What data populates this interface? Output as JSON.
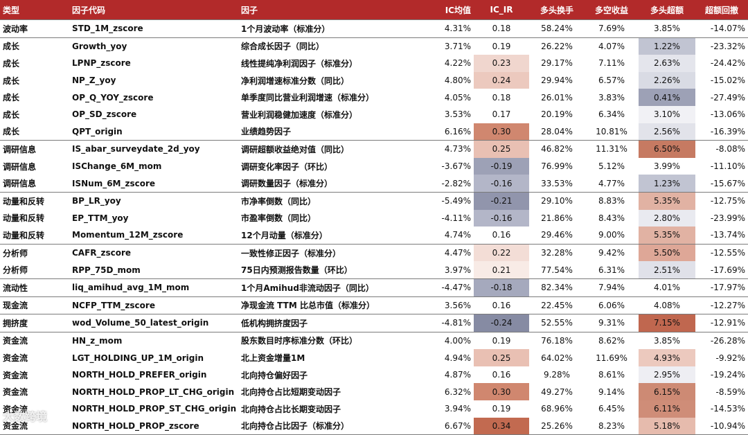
{
  "headers": [
    "类型",
    "因子代码",
    "因子",
    "IC均值",
    "IC_IR",
    "多头换手",
    "多空收益",
    "多头超额",
    "超额回撤"
  ],
  "colors": {
    "header_bg": "#b22a2a",
    "positive_dark": "#c0674f",
    "negative_dark": "#8a8fa8"
  },
  "rows": [
    {
      "type": "波动率",
      "code": "STD_1M_zscore",
      "factor": "1个月波动率（标准分）",
      "ic": "4.31%",
      "icir": "0.18",
      "turnover": "58.24%",
      "ls_ret": "7.69%",
      "excess": "3.85%",
      "dd": "-14.07%",
      "icir_bg": "#ffffff",
      "excess_bg": "#ffffff",
      "sep": true
    },
    {
      "type": "成长",
      "code": "Growth_yoy",
      "factor": "综合成长因子（同比）",
      "ic": "3.71%",
      "icir": "0.19",
      "turnover": "26.22%",
      "ls_ret": "4.07%",
      "excess": "1.22%",
      "dd": "-23.32%",
      "icir_bg": "#ffffff",
      "excess_bg": "#c1c4d2",
      "sep": true
    },
    {
      "type": "成长",
      "code": "LPNP_zscore",
      "factor": "线性提纯净利润因子（标准分）",
      "ic": "4.22%",
      "icir": "0.23",
      "turnover": "29.17%",
      "ls_ret": "7.11%",
      "excess": "2.63%",
      "dd": "-24.42%",
      "icir_bg": "#f0d6ce",
      "excess_bg": "#e4e5ec",
      "sep": false
    },
    {
      "type": "成长",
      "code": "NP_Z_yoy",
      "factor": "净利润增速标准分数（同比）",
      "ic": "4.80%",
      "icir": "0.24",
      "turnover": "29.94%",
      "ls_ret": "6.57%",
      "excess": "2.26%",
      "dd": "-15.02%",
      "icir_bg": "#ecc9be",
      "excess_bg": "#d9dbe4",
      "sep": false
    },
    {
      "type": "成长",
      "code": "OP_Q_YOY_zscore",
      "factor": "单季度同比营业利润增速（标准分）",
      "ic": "4.05%",
      "icir": "0.18",
      "turnover": "26.01%",
      "ls_ret": "3.83%",
      "excess": "0.41%",
      "dd": "-27.49%",
      "icir_bg": "#ffffff",
      "excess_bg": "#9da1b6",
      "sep": false
    },
    {
      "type": "成长",
      "code": "OP_SD_zscore",
      "factor": "营业利润稳健加速度（标准分）",
      "ic": "3.53%",
      "icir": "0.17",
      "turnover": "20.19%",
      "ls_ret": "6.34%",
      "excess": "3.10%",
      "dd": "-13.06%",
      "icir_bg": "#ffffff",
      "excess_bg": "#f1f1f5",
      "sep": false
    },
    {
      "type": "成长",
      "code": "QPT_origin",
      "factor": "业绩趋势因子",
      "ic": "6.16%",
      "icir": "0.30",
      "turnover": "28.04%",
      "ls_ret": "10.81%",
      "excess": "2.56%",
      "dd": "-16.39%",
      "icir_bg": "#d0876f",
      "excess_bg": "#e2e3ea",
      "sep": false
    },
    {
      "type": "调研信息",
      "code": "IS_abar_surveydate_2d_yoy",
      "factor": "调研超额收益绝对值（同比）",
      "ic": "4.73%",
      "icir": "0.25",
      "turnover": "46.82%",
      "ls_ret": "11.31%",
      "excess": "6.50%",
      "dd": "-8.08%",
      "icir_bg": "#e9c0b3",
      "excess_bg": "#c67a62",
      "sep": true
    },
    {
      "type": "调研信息",
      "code": "ISChange_6M_mom",
      "factor": "调研变化率因子（环比）",
      "ic": "-3.67%",
      "icir": "-0.19",
      "turnover": "76.99%",
      "ls_ret": "5.12%",
      "excess": "3.99%",
      "dd": "-11.10%",
      "icir_bg": "#9da1b6",
      "excess_bg": "#ffffff",
      "sep": false
    },
    {
      "type": "调研信息",
      "code": "ISNum_6M_zscore",
      "factor": "调研数量因子（标准分）",
      "ic": "-2.82%",
      "icir": "-0.16",
      "turnover": "33.53%",
      "ls_ret": "4.77%",
      "excess": "1.23%",
      "dd": "-15.67%",
      "icir_bg": "#b3b6c8",
      "excess_bg": "#c1c4d2",
      "sep": false
    },
    {
      "type": "动量和反转",
      "code": "BP_LR_yoy",
      "factor": "市净率倒数（同比）",
      "ic": "-5.49%",
      "icir": "-0.21",
      "turnover": "29.10%",
      "ls_ret": "8.83%",
      "excess": "5.35%",
      "dd": "-12.75%",
      "icir_bg": "#9195ac",
      "excess_bg": "#e1b2a3",
      "sep": true
    },
    {
      "type": "动量和反转",
      "code": "EP_TTM_yoy",
      "factor": "市盈率倒数（同比）",
      "ic": "-4.11%",
      "icir": "-0.16",
      "turnover": "21.86%",
      "ls_ret": "8.43%",
      "excess": "2.80%",
      "dd": "-23.99%",
      "icir_bg": "#b3b6c8",
      "excess_bg": "#e9eaf0",
      "sep": false
    },
    {
      "type": "动量和反转",
      "code": "Momentum_12M_zscore",
      "factor": "12个月动量（标准分）",
      "ic": "4.74%",
      "icir": "0.16",
      "turnover": "29.46%",
      "ls_ret": "9.00%",
      "excess": "5.35%",
      "dd": "-13.74%",
      "icir_bg": "#ffffff",
      "excess_bg": "#e1b2a3",
      "sep": false
    },
    {
      "type": "分析师",
      "code": "CAFR_zscore",
      "factor": "一致性修正因子（标准分）",
      "ic": "4.47%",
      "icir": "0.22",
      "turnover": "32.28%",
      "ls_ret": "9.42%",
      "excess": "5.50%",
      "dd": "-12.55%",
      "icir_bg": "#f3ddd6",
      "excess_bg": "#dea797",
      "sep": true
    },
    {
      "type": "分析师",
      "code": "RPP_75D_mom",
      "factor": "75日内预测报告数量（环比）",
      "ic": "3.97%",
      "icir": "0.21",
      "turnover": "77.54%",
      "ls_ret": "6.31%",
      "excess": "2.51%",
      "dd": "-17.69%",
      "icir_bg": "#f8ebe6",
      "excess_bg": "#e0e1e9",
      "sep": false
    },
    {
      "type": "流动性",
      "code": "liq_amihud_avg_1M_mom",
      "factor": "1个月Amihud非流动因子（同比）",
      "ic": "-4.47%",
      "icir": "-0.18",
      "turnover": "82.34%",
      "ls_ret": "7.94%",
      "excess": "4.01%",
      "dd": "-17.97%",
      "icir_bg": "#a5a9bd",
      "excess_bg": "#ffffff",
      "sep": true
    },
    {
      "type": "现金流",
      "code": "NCFP_TTM_zscore",
      "factor": "净现金流 TTM 比总市值（标准分）",
      "ic": "3.56%",
      "icir": "0.16",
      "turnover": "22.45%",
      "ls_ret": "6.06%",
      "excess": "4.08%",
      "dd": "-12.27%",
      "icir_bg": "#ffffff",
      "excess_bg": "#ffffff",
      "sep": true
    },
    {
      "type": "拥挤度",
      "code": "wod_Volume_50_latest_origin",
      "factor": "低机构拥挤度因子",
      "ic": "-4.81%",
      "icir": "-0.24",
      "turnover": "52.55%",
      "ls_ret": "9.31%",
      "excess": "7.15%",
      "dd": "-12.91%",
      "icir_bg": "#868ba3",
      "excess_bg": "#c0674f",
      "sep": true
    },
    {
      "type": "资金流",
      "code": "HN_z_mom",
      "factor": "股东数目时序标准分数（环比）",
      "ic": "4.00%",
      "icir": "0.19",
      "turnover": "76.18%",
      "ls_ret": "8.62%",
      "excess": "3.85%",
      "dd": "-26.28%",
      "icir_bg": "#ffffff",
      "excess_bg": "#ffffff",
      "sep": true
    },
    {
      "type": "资金流",
      "code": "LGT_HOLDING_UP_1M_origin",
      "factor": "北上资金增量1M",
      "ic": "4.94%",
      "icir": "0.25",
      "turnover": "64.02%",
      "ls_ret": "11.69%",
      "excess": "4.93%",
      "dd": "-9.92%",
      "icir_bg": "#e9c0b3",
      "excess_bg": "#ecc9be",
      "sep": false
    },
    {
      "type": "资金流",
      "code": "NORTH_HOLD_PREFER_origin",
      "factor": "北向持仓偏好因子",
      "ic": "4.87%",
      "icir": "0.16",
      "turnover": "9.28%",
      "ls_ret": "8.61%",
      "excess": "2.95%",
      "dd": "-19.24%",
      "icir_bg": "#ffffff",
      "excess_bg": "#eeeef3",
      "sep": false
    },
    {
      "type": "资金流",
      "code": "NORTH_HOLD_PROP_LT_CHG_origin",
      "factor": "北向持仓占比短期变动因子",
      "ic": "6.32%",
      "icir": "0.30",
      "turnover": "49.27%",
      "ls_ret": "9.14%",
      "excess": "6.15%",
      "dd": "-8.59%",
      "icir_bg": "#d0876f",
      "excess_bg": "#cd8a74",
      "sep": false
    },
    {
      "type": "资金流",
      "code": "NORTH_HOLD_PROP_ST_CHG_origin",
      "factor": "北向持仓占比长期变动因子",
      "ic": "3.94%",
      "icir": "0.19",
      "turnover": "68.96%",
      "ls_ret": "6.45%",
      "excess": "6.11%",
      "dd": "-14.53%",
      "icir_bg": "#ffffff",
      "excess_bg": "#cf8d78",
      "sep": false
    },
    {
      "type": "资金流",
      "code": "NORTH_HOLD_PROP_zscore",
      "factor": "北向持仓占比因子（标准分）",
      "ic": "6.67%",
      "icir": "0.34",
      "turnover": "25.26%",
      "ls_ret": "8.23%",
      "excess": "5.18%",
      "dd": "-10.94%",
      "icir_bg": "#c26a50",
      "excess_bg": "#e6bbad",
      "sep": false
    }
  ],
  "watermark": "大数跨境"
}
